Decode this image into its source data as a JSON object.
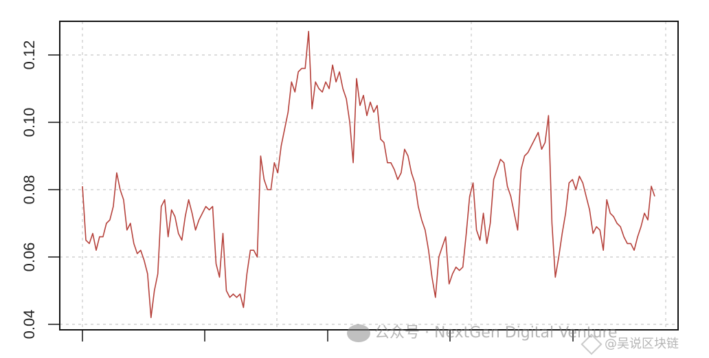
{
  "chart_data": {
    "type": "line",
    "title": "",
    "xlabel": "",
    "ylabel": "",
    "ylim": [
      0.038,
      0.13
    ],
    "yticks": [
      "0.04",
      "0.06",
      "0.08",
      "0.10",
      "0.12"
    ],
    "grid": true,
    "line_color": "#b5403a",
    "series": [
      {
        "values": [
          0.081,
          0.065,
          0.064,
          0.067,
          0.062,
          0.066,
          0.066,
          0.07,
          0.071,
          0.075,
          0.085,
          0.08,
          0.077,
          0.068,
          0.07,
          0.064,
          0.061,
          0.062,
          0.059,
          0.055,
          0.042,
          0.05,
          0.055,
          0.075,
          0.077,
          0.066,
          0.074,
          0.072,
          0.067,
          0.065,
          0.072,
          0.077,
          0.073,
          0.068,
          0.071,
          0.073,
          0.075,
          0.074,
          0.075,
          0.058,
          0.054,
          0.067,
          0.05,
          0.048,
          0.049,
          0.048,
          0.049,
          0.045,
          0.055,
          0.062,
          0.062,
          0.06,
          0.09,
          0.083,
          0.08,
          0.08,
          0.088,
          0.085,
          0.093,
          0.098,
          0.103,
          0.112,
          0.109,
          0.115,
          0.116,
          0.116,
          0.127,
          0.104,
          0.112,
          0.11,
          0.109,
          0.112,
          0.11,
          0.117,
          0.112,
          0.115,
          0.11,
          0.107,
          0.1,
          0.088,
          0.113,
          0.105,
          0.108,
          0.102,
          0.106,
          0.103,
          0.105,
          0.095,
          0.094,
          0.088,
          0.088,
          0.086,
          0.083,
          0.085,
          0.092,
          0.09,
          0.085,
          0.082,
          0.075,
          0.071,
          0.068,
          0.062,
          0.054,
          0.048,
          0.06,
          0.063,
          0.066,
          0.052,
          0.055,
          0.057,
          0.056,
          0.057,
          0.067,
          0.078,
          0.082,
          0.068,
          0.065,
          0.073,
          0.064,
          0.07,
          0.083,
          0.086,
          0.089,
          0.088,
          0.081,
          0.078,
          0.073,
          0.068,
          0.086,
          0.09,
          0.091,
          0.093,
          0.095,
          0.097,
          0.092,
          0.094,
          0.102,
          0.07,
          0.054,
          0.06,
          0.067,
          0.073,
          0.082,
          0.083,
          0.08,
          0.084,
          0.082,
          0.078,
          0.074,
          0.067,
          0.069,
          0.068,
          0.062,
          0.077,
          0.073,
          0.072,
          0.07,
          0.069,
          0.066,
          0.064,
          0.064,
          0.062,
          0.066,
          0.069,
          0.073,
          0.071,
          0.081,
          0.078
        ]
      }
    ]
  },
  "watermark": {
    "account": "公众号 · NextGen Digital Venture",
    "handle": "@吴说区块链"
  }
}
